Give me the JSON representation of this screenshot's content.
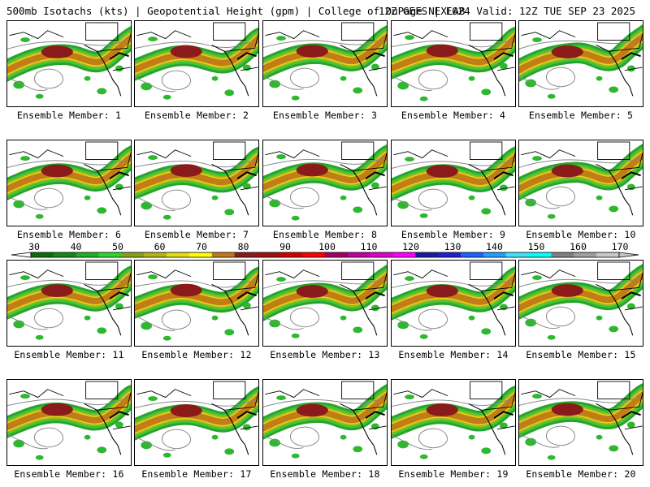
{
  "header": {
    "title_left": "500mb Isotachs (kts) | Geopotential Height (gpm) | College of DuPage NEXLAB",
    "title_right": "12Z GEFS | F024 Valid: 12Z TUE SEP 23 2025"
  },
  "panels": [
    {
      "label": "Ensemble Member: 1"
    },
    {
      "label": "Ensemble Member: 2"
    },
    {
      "label": "Ensemble Member: 3"
    },
    {
      "label": "Ensemble Member: 4"
    },
    {
      "label": "Ensemble Member: 5"
    },
    {
      "label": "Ensemble Member: 6"
    },
    {
      "label": "Ensemble Member: 7"
    },
    {
      "label": "Ensemble Member: 8"
    },
    {
      "label": "Ensemble Member: 9"
    },
    {
      "label": "Ensemble Member: 10"
    },
    {
      "label": "Ensemble Member: 11"
    },
    {
      "label": "Ensemble Member: 12"
    },
    {
      "label": "Ensemble Member: 13"
    },
    {
      "label": "Ensemble Member: 14"
    },
    {
      "label": "Ensemble Member: 15"
    },
    {
      "label": "Ensemble Member: 16"
    },
    {
      "label": "Ensemble Member: 17"
    },
    {
      "label": "Ensemble Member: 18"
    },
    {
      "label": "Ensemble Member: 19"
    },
    {
      "label": "Ensemble Member: 20"
    }
  ],
  "colorbar": {
    "unit": "kts",
    "ticks": [
      "30",
      "40",
      "50",
      "60",
      "70",
      "80",
      "90",
      "100",
      "110",
      "120",
      "130",
      "140",
      "150",
      "160",
      "170"
    ],
    "colors": [
      "#0a6e0a",
      "#128a12",
      "#1fb01f",
      "#2fd42f",
      "#8aa018",
      "#b4b414",
      "#e6dc14",
      "#ffff00",
      "#c07818",
      "#8b1a1a",
      "#a01010",
      "#d00000",
      "#ff0000",
      "#a00060",
      "#c000a0",
      "#e000d0",
      "#ff00ff",
      "#1a1aa0",
      "#2020d0",
      "#2060ff",
      "#20a0ff",
      "#40e0ff",
      "#00ffff",
      "#808080",
      "#a0a0a0",
      "#c8c8c8"
    ]
  }
}
